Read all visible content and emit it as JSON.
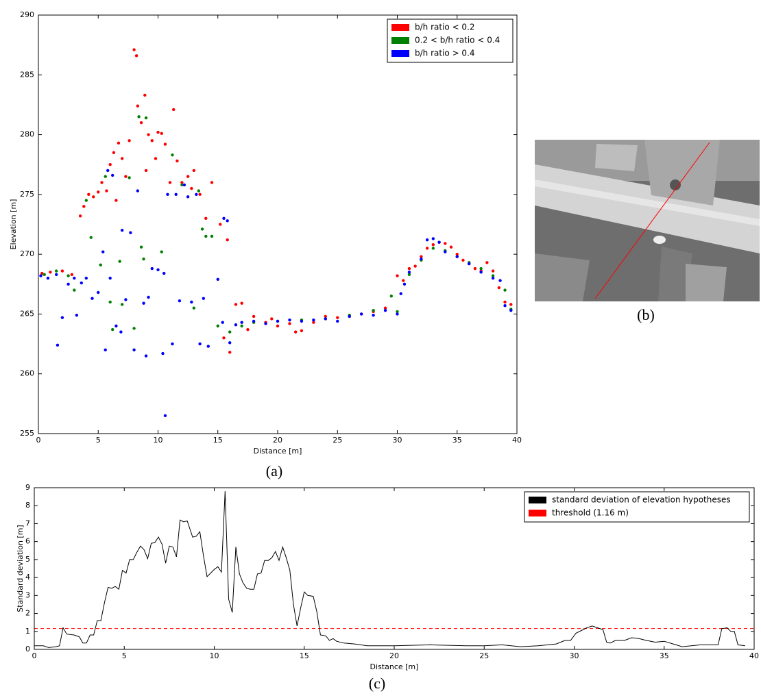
{
  "chart_data": [
    {
      "type": "scatter",
      "xlabel": "Distance [m]",
      "ylabel": "Elevation [m]",
      "caption": "(a)",
      "xlim": [
        0,
        40
      ],
      "ylim": [
        255,
        290
      ],
      "xticks": [
        0,
        5,
        10,
        15,
        20,
        25,
        30,
        35,
        40
      ],
      "yticks": [
        255,
        260,
        265,
        270,
        275,
        280,
        285,
        290
      ],
      "legend": "upper right",
      "series": [
        {
          "name": "b/h ratio < 0.2",
          "color": "#ff0000",
          "x": [
            0.3,
            1,
            2,
            2.8,
            3.5,
            3.8,
            4.2,
            4.6,
            5,
            5.3,
            5.7,
            6,
            6.3,
            6.7,
            7,
            7.3,
            7.6,
            8,
            8.2,
            8.3,
            8.6,
            8.9,
            9.2,
            9.5,
            9.8,
            10,
            10.3,
            10.6,
            11,
            11.3,
            11.6,
            12,
            12.5,
            13,
            13.5,
            14,
            14.5,
            15.2,
            15.8,
            16,
            15.5,
            16.5,
            17,
            18,
            19,
            20,
            21,
            21.5,
            22,
            23,
            24,
            25,
            26,
            27,
            28,
            29,
            30,
            30.5,
            31,
            31.5,
            32,
            32.5,
            33,
            33.5,
            34,
            34.5,
            35,
            35.5,
            36,
            36.5,
            37,
            37.5,
            38,
            38.5,
            39,
            39.5,
            6.5,
            9,
            12.8,
            17.5,
            19.5
          ],
          "values": [
            268.4,
            268.5,
            268.6,
            268.3,
            273.2,
            274,
            275,
            274.8,
            275.2,
            276,
            275.3,
            277.5,
            278.5,
            279.3,
            278,
            276.5,
            279.5,
            287.1,
            286.6,
            282.4,
            281,
            283.3,
            280,
            279.5,
            278,
            280.2,
            280.1,
            279.2,
            276,
            282.1,
            277.8,
            276,
            276.5,
            277,
            275,
            273,
            276,
            272.5,
            271.2,
            261.8,
            263,
            265.8,
            265.9,
            264.8,
            264.3,
            264,
            264.2,
            263.5,
            263.6,
            264.3,
            264.8,
            264.7,
            264.8,
            265,
            265.2,
            265.5,
            268.2,
            267.8,
            268.8,
            269,
            269.8,
            270.5,
            270.8,
            271,
            270.9,
            270.6,
            270,
            269.5,
            269.2,
            268.8,
            268.6,
            269.3,
            268.6,
            267.2,
            266,
            265.8,
            274.5,
            277,
            275.5,
            263.7,
            264.6
          ]
        },
        {
          "name": "0.2 < b/h ratio < 0.4",
          "color": "#008000",
          "x": [
            0.5,
            1.5,
            2.5,
            3,
            4,
            4.4,
            5.2,
            5.6,
            6,
            6.2,
            6.8,
            7,
            7.6,
            8,
            8.4,
            8.6,
            8.8,
            9,
            10.3,
            11.2,
            12,
            13,
            13.4,
            13.7,
            14,
            14.5,
            15,
            16,
            17,
            18,
            20,
            22,
            24,
            26,
            28,
            29.5,
            30,
            31,
            32,
            33,
            34,
            35,
            36,
            37,
            38,
            39,
            39.5
          ],
          "values": [
            268.3,
            268.6,
            268.2,
            267,
            274.5,
            271.4,
            269.1,
            276.5,
            266,
            263.7,
            269.4,
            265.8,
            276.4,
            263.8,
            281.5,
            270.6,
            269.6,
            281.4,
            270.2,
            278.3,
            275.8,
            265.5,
            275.3,
            272.1,
            271.5,
            271.5,
            264,
            263.5,
            264,
            264.3,
            264.4,
            264.5,
            264.6,
            264.9,
            265.3,
            266.5,
            265.2,
            268.3,
            269.5,
            270.5,
            270.3,
            269.8,
            269.3,
            268.8,
            268.2,
            267,
            265.4
          ]
        },
        {
          "name": "b/h ratio > 0.4",
          "color": "#0000ff",
          "x": [
            0.2,
            0.8,
            1.5,
            1.6,
            2,
            2.5,
            3,
            3.2,
            3.6,
            4,
            4.5,
            5,
            5.4,
            5.6,
            5.8,
            6,
            6.2,
            6.5,
            6.9,
            7,
            7.3,
            7.7,
            8,
            8.3,
            8.8,
            9,
            9.2,
            9.5,
            10,
            10.5,
            10.4,
            10.6,
            10.8,
            11.2,
            11.5,
            11.8,
            12.2,
            12.5,
            12.8,
            13.2,
            13.5,
            13.8,
            14.2,
            15,
            15.4,
            15.5,
            15.8,
            16,
            16.5,
            17,
            18,
            19,
            20,
            21,
            22,
            23,
            24,
            25,
            26,
            27,
            28,
            29,
            30,
            30.3,
            30.6,
            31,
            32,
            32.5,
            33,
            33.5,
            34,
            35,
            36,
            37,
            38,
            38.6,
            39,
            39.5
          ],
          "values": [
            268.2,
            268,
            268.3,
            262.4,
            264.7,
            267.5,
            268,
            264.9,
            267.6,
            268,
            266.3,
            266.8,
            270.2,
            262,
            277,
            268,
            276.6,
            264,
            263.5,
            272,
            266.2,
            271.8,
            262,
            275.3,
            265.9,
            261.5,
            266.4,
            268.8,
            268.7,
            268.4,
            261.7,
            256.5,
            275,
            262.5,
            275,
            266.1,
            275.8,
            274.8,
            266,
            275,
            262.5,
            266.3,
            262.3,
            267.9,
            264.3,
            273,
            272.8,
            262.6,
            264.1,
            264.3,
            264.4,
            264.2,
            264.4,
            264.5,
            264.4,
            264.5,
            264.6,
            264.4,
            264.8,
            265,
            264.9,
            265.3,
            265,
            266.7,
            267.5,
            268.5,
            269.6,
            271.2,
            271.3,
            271,
            270.2,
            269.8,
            269.2,
            268.5,
            268,
            267.8,
            265.7,
            265.3
          ]
        }
      ]
    },
    {
      "type": "line",
      "xlabel": "Distance [m]",
      "ylabel": "Standard deviation [m]",
      "caption": "(c)",
      "xlim": [
        0,
        40
      ],
      "ylim": [
        0,
        9
      ],
      "xticks": [
        0,
        5,
        10,
        15,
        20,
        25,
        30,
        35,
        40
      ],
      "yticks": [
        0,
        1,
        2,
        3,
        4,
        5,
        6,
        7,
        8,
        9
      ],
      "legend": "upper right",
      "series": [
        {
          "name": "standard deviation of elevation hypotheses",
          "color": "#000000",
          "x": [
            0,
            0.5,
            0.8,
            1.2,
            1.4,
            1.6,
            1.8,
            2.2,
            2.5,
            2.7,
            2.9,
            3.1,
            3.3,
            3.5,
            3.7,
            3.9,
            4.1,
            4.3,
            4.5,
            4.7,
            4.9,
            5.1,
            5.3,
            5.5,
            5.7,
            5.9,
            6.1,
            6.3,
            6.5,
            6.7,
            6.9,
            7.1,
            7.3,
            7.5,
            7.7,
            7.9,
            8.1,
            8.3,
            8.5,
            8.8,
            9,
            9.2,
            9.4,
            9.6,
            9.8,
            10,
            10.2,
            10.4,
            10.6,
            10.8,
            11,
            11.2,
            11.4,
            11.6,
            11.8,
            12,
            12.2,
            12.4,
            12.6,
            12.8,
            13,
            13.2,
            13.4,
            13.6,
            13.8,
            14,
            14.2,
            14.4,
            14.6,
            14.8,
            15,
            15.2,
            15.5,
            15.7,
            15.9,
            16.2,
            16.4,
            16.6,
            16.8,
            17.2,
            17.8,
            18.5,
            20,
            22,
            24,
            25,
            26,
            26.5,
            27,
            28,
            29,
            29.5,
            29.8,
            30.1,
            30.4,
            30.7,
            31,
            31.3,
            31.6,
            31.8,
            32,
            32.3,
            32.8,
            33.2,
            33.6,
            34,
            34.5,
            35,
            35.5,
            36,
            37,
            37.5,
            38,
            38.2,
            38.5,
            38.7,
            38.9,
            39.1,
            39.5
          ],
          "values": [
            0.2,
            0.2,
            0.1,
            0.15,
            0.2,
            1.2,
            0.85,
            0.8,
            0.7,
            0.35,
            0.35,
            0.8,
            0.8,
            1.6,
            1.6,
            2.6,
            3.45,
            3.4,
            3.5,
            3.35,
            4.4,
            4.25,
            5,
            5,
            5.4,
            5.75,
            5.55,
            5.05,
            5.9,
            5.95,
            6.25,
            5.85,
            4.8,
            5.75,
            5.7,
            5.15,
            7.2,
            7.1,
            7.15,
            6.25,
            6.3,
            6.55,
            5.2,
            4.05,
            4.25,
            4.45,
            4.6,
            4.3,
            8.8,
            2.8,
            2.05,
            5.7,
            4.2,
            3.7,
            3.4,
            3.35,
            3.35,
            4.2,
            4.25,
            4.95,
            4.95,
            5.1,
            5.45,
            4.95,
            5.7,
            5.1,
            4.4,
            2.5,
            1.3,
            2.3,
            3.2,
            3,
            2.95,
            2.1,
            0.8,
            0.75,
            0.5,
            0.6,
            0.45,
            0.35,
            0.3,
            0.2,
            0.2,
            0.25,
            0.2,
            0.2,
            0.25,
            0.2,
            0.15,
            0.2,
            0.3,
            0.5,
            0.5,
            0.9,
            1.05,
            1.2,
            1.3,
            1.2,
            1.1,
            0.4,
            0.35,
            0.5,
            0.5,
            0.65,
            0.6,
            0.5,
            0.4,
            0.45,
            0.3,
            0.15,
            0.25,
            0.25,
            0.25,
            1.15,
            1.2,
            1,
            1,
            0.25,
            0.2
          ]
        }
      ],
      "threshold": {
        "name": "threshold (1.16 m)",
        "color": "#ff0000",
        "value": 1.16
      }
    }
  ],
  "image": {
    "caption": "(b)"
  }
}
